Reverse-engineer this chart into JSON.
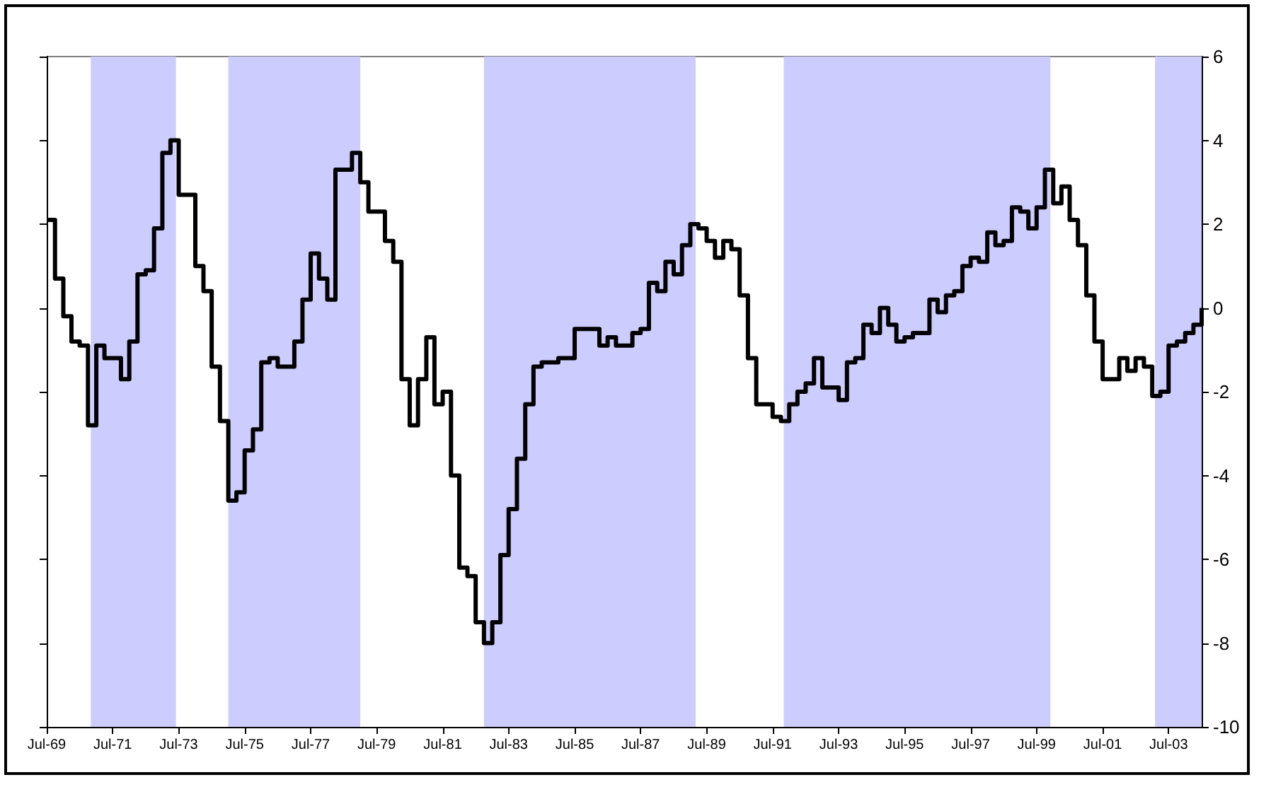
{
  "chart_data": {
    "type": "step",
    "x": [
      "1969-07",
      "1969-10",
      "1970-01",
      "1970-04",
      "1970-07",
      "1970-10",
      "1971-01",
      "1971-04",
      "1971-07",
      "1971-10",
      "1972-01",
      "1972-04",
      "1972-07",
      "1972-10",
      "1973-01",
      "1973-04",
      "1973-07",
      "1973-10",
      "1974-01",
      "1974-04",
      "1974-07",
      "1974-10",
      "1975-01",
      "1975-04",
      "1975-07",
      "1975-10",
      "1976-01",
      "1976-04",
      "1976-07",
      "1976-10",
      "1977-01",
      "1977-04",
      "1977-07",
      "1977-10",
      "1978-01",
      "1978-04",
      "1978-07",
      "1978-10",
      "1979-01",
      "1979-04",
      "1979-07",
      "1979-10",
      "1980-01",
      "1980-04",
      "1980-07",
      "1980-10",
      "1981-01",
      "1981-04",
      "1981-07",
      "1981-10",
      "1982-01",
      "1982-04",
      "1982-07",
      "1982-10",
      "1983-01",
      "1983-04",
      "1983-07",
      "1983-10",
      "1984-01",
      "1984-04",
      "1984-07",
      "1984-10",
      "1985-01",
      "1985-04",
      "1985-07",
      "1985-10",
      "1986-01",
      "1986-04",
      "1986-07",
      "1986-10",
      "1987-01",
      "1987-04",
      "1987-07",
      "1987-10",
      "1988-01",
      "1988-04",
      "1988-07",
      "1988-10",
      "1989-01",
      "1989-04",
      "1989-07",
      "1989-10",
      "1990-01",
      "1990-04",
      "1990-07",
      "1990-10",
      "1991-01",
      "1991-04",
      "1991-07",
      "1991-10",
      "1992-01",
      "1992-04",
      "1992-07",
      "1992-10",
      "1993-01",
      "1993-04",
      "1993-07",
      "1993-10",
      "1994-01",
      "1994-04",
      "1994-07",
      "1994-10",
      "1995-01",
      "1995-04",
      "1995-07",
      "1995-10",
      "1996-01",
      "1996-04",
      "1996-07",
      "1996-10",
      "1997-01",
      "1997-04",
      "1997-07",
      "1997-10",
      "1998-01",
      "1998-04",
      "1998-07",
      "1998-10",
      "1999-01",
      "1999-04",
      "1999-07",
      "1999-10",
      "2000-01",
      "2000-04",
      "2000-07",
      "2000-10",
      "2001-01",
      "2001-04",
      "2001-07",
      "2001-10",
      "2002-01",
      "2002-04",
      "2002-07",
      "2002-10",
      "2003-01",
      "2003-04",
      "2003-07",
      "2003-10",
      "2004-01",
      "2004-04",
      "2004-07"
    ],
    "series": [
      {
        "color": "#000000",
        "values": [
          2.1,
          0.7,
          -0.2,
          -0.8,
          -0.9,
          -2.8,
          -0.9,
          -1.2,
          -1.2,
          -1.7,
          -0.8,
          0.8,
          0.9,
          1.9,
          3.7,
          4.0,
          2.7,
          2.7,
          1.0,
          0.4,
          -1.4,
          -2.7,
          -4.6,
          -4.4,
          -3.4,
          -2.9,
          -1.3,
          -1.2,
          -1.4,
          -1.4,
          -0.8,
          0.2,
          1.3,
          0.7,
          0.2,
          3.3,
          3.3,
          3.7,
          3.0,
          2.3,
          2.3,
          1.6,
          1.1,
          -1.7,
          -2.8,
          -1.7,
          -0.7,
          -2.3,
          -2.0,
          -4.0,
          -6.2,
          -6.4,
          -7.5,
          -8.0,
          -7.5,
          -5.9,
          -4.8,
          -3.6,
          -2.3,
          -1.4,
          -1.3,
          -1.3,
          -1.2,
          -1.2,
          -0.5,
          -0.5,
          -0.5,
          -0.9,
          -0.7,
          -0.9,
          -0.9,
          -0.6,
          -0.5,
          0.6,
          0.4,
          1.1,
          0.8,
          1.5,
          2.0,
          1.9,
          1.6,
          1.2,
          1.6,
          1.4,
          0.3,
          -1.2,
          -2.3,
          -2.3,
          -2.6,
          -2.7,
          -2.3,
          -2.0,
          -1.8,
          -1.2,
          -1.9,
          -1.9,
          -2.2,
          -1.3,
          -1.2,
          -0.4,
          -0.6,
          0.0,
          -0.4,
          -0.8,
          -0.7,
          -0.6,
          -0.6,
          0.2,
          -0.1,
          0.3,
          0.4,
          1.0,
          1.2,
          1.1,
          1.8,
          1.5,
          1.6,
          2.4,
          2.3,
          1.9,
          2.4,
          3.3,
          2.5,
          2.9,
          2.1,
          1.5,
          0.3,
          -0.8,
          -1.7,
          -1.7,
          -1.2,
          -1.5,
          -1.2,
          -1.4,
          -2.1,
          -2.0,
          -0.9,
          -0.8,
          -0.6,
          -0.4,
          0.0
        ]
      }
    ],
    "xlim": [
      "1969-07",
      "2004-07"
    ],
    "xticks": [
      {
        "value": "1969-07",
        "label": "Jul-69"
      },
      {
        "value": "1971-07",
        "label": "Jul-71"
      },
      {
        "value": "1973-07",
        "label": "Jul-73"
      },
      {
        "value": "1975-07",
        "label": "Jul-75"
      },
      {
        "value": "1977-07",
        "label": "Jul-77"
      },
      {
        "value": "1979-07",
        "label": "Jul-79"
      },
      {
        "value": "1981-07",
        "label": "Jul-81"
      },
      {
        "value": "1983-07",
        "label": "Jul-83"
      },
      {
        "value": "1985-07",
        "label": "Jul-85"
      },
      {
        "value": "1987-07",
        "label": "Jul-87"
      },
      {
        "value": "1989-07",
        "label": "Jul-89"
      },
      {
        "value": "1991-07",
        "label": "Jul-91"
      },
      {
        "value": "1993-07",
        "label": "Jul-93"
      },
      {
        "value": "1995-07",
        "label": "Jul-95"
      },
      {
        "value": "1997-07",
        "label": "Jul-97"
      },
      {
        "value": "1999-07",
        "label": "Jul-99"
      },
      {
        "value": "2001-07",
        "label": "Jul-01"
      },
      {
        "value": "2003-07",
        "label": "Jul-03"
      }
    ],
    "ylim": [
      -10,
      6
    ],
    "yticks": [
      -10,
      -8,
      -6,
      -4,
      -2,
      0,
      2,
      4,
      6
    ],
    "bands": [
      {
        "axis": "x",
        "from": "1970-11",
        "to": "1973-06",
        "color": "#ccccff"
      },
      {
        "axis": "x",
        "from": "1975-01",
        "to": "1979-01",
        "color": "#ccccff"
      },
      {
        "axis": "x",
        "from": "1982-10",
        "to": "1989-03",
        "color": "#ccccff"
      },
      {
        "axis": "x",
        "from": "1991-11",
        "to": "1999-12",
        "color": "#ccccff"
      },
      {
        "axis": "x",
        "from": "2003-02",
        "to": "2004-07",
        "color": "#ccccff"
      }
    ],
    "grid": false
  }
}
